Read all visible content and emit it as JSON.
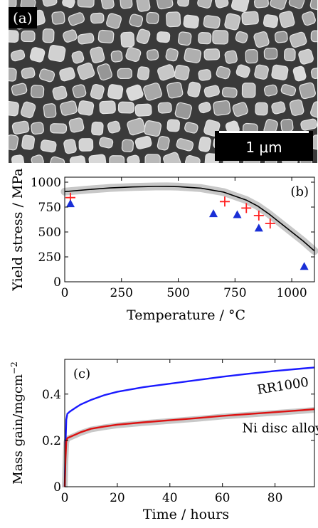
{
  "panels": {
    "a": {
      "label": "(a)",
      "scale_bar": "1 μm"
    }
  },
  "chart_data": [
    {
      "panel": "(b)",
      "type": "scatter",
      "xlabel": "Temperature / °C",
      "ylabel": "Yield stress / MPa",
      "xlim": [
        0,
        1100
      ],
      "ylim": [
        0,
        1050
      ],
      "xticks": [
        "0",
        "250",
        "500",
        "750",
        "1000"
      ],
      "yticks": [
        "0",
        "250",
        "500",
        "750",
        "1000"
      ],
      "colors": {
        "model": "#000000",
        "band": "#c8c8c8",
        "cross": "#ff2020",
        "triangle": "#1a2fd6"
      },
      "series": [
        {
          "kind": "line",
          "x": [
            0,
            100,
            200,
            300,
            400,
            450,
            500,
            600,
            700,
            800,
            850,
            900,
            950,
            1000,
            1050,
            1100
          ],
          "y": [
            905,
            925,
            942,
            952,
            957,
            958,
            955,
            940,
            900,
            820,
            760,
            680,
            590,
            500,
            410,
            310
          ]
        },
        {
          "kind": "cross",
          "x": [
            25,
            705,
            800,
            855,
            905
          ],
          "y": [
            845,
            805,
            740,
            665,
            585
          ]
        },
        {
          "kind": "triangle",
          "x": [
            25,
            655,
            760,
            855,
            1055
          ],
          "y": [
            785,
            685,
            675,
            540,
            155
          ]
        }
      ]
    },
    {
      "panel": "(c)",
      "type": "line",
      "xlabel": "Time / hours",
      "ylabel": "Mass gain/mgcm",
      "ylabel_sup": "−2",
      "xlim": [
        0,
        95
      ],
      "ylim": [
        0,
        0.55
      ],
      "xticks": [
        "0",
        "20",
        "40",
        "60",
        "80"
      ],
      "yticks": [
        "0",
        "0.2",
        "0.4"
      ],
      "colors": {
        "RR1000": "#1a1aff",
        "Ni disc alloy": "#dd1111",
        "band": "#c8c8c8"
      },
      "series": [
        {
          "name": "RR1000",
          "x": [
            0,
            0.3,
            0.6,
            1,
            2,
            4,
            6,
            10,
            15,
            20,
            30,
            40,
            50,
            60,
            70,
            80,
            90,
            95
          ],
          "y": [
            0,
            0.18,
            0.29,
            0.315,
            0.325,
            0.34,
            0.355,
            0.375,
            0.395,
            0.41,
            0.43,
            0.445,
            0.46,
            0.475,
            0.488,
            0.5,
            0.51,
            0.515
          ]
        },
        {
          "name": "Ni disc alloy",
          "x": [
            0,
            0.3,
            0.6,
            1,
            2,
            4,
            6,
            10,
            15,
            20,
            30,
            40,
            50,
            60,
            70,
            80,
            90,
            95
          ],
          "y": [
            0,
            0.12,
            0.195,
            0.21,
            0.215,
            0.225,
            0.235,
            0.25,
            0.26,
            0.268,
            0.278,
            0.287,
            0.296,
            0.306,
            0.314,
            0.322,
            0.33,
            0.335
          ]
        }
      ]
    }
  ]
}
